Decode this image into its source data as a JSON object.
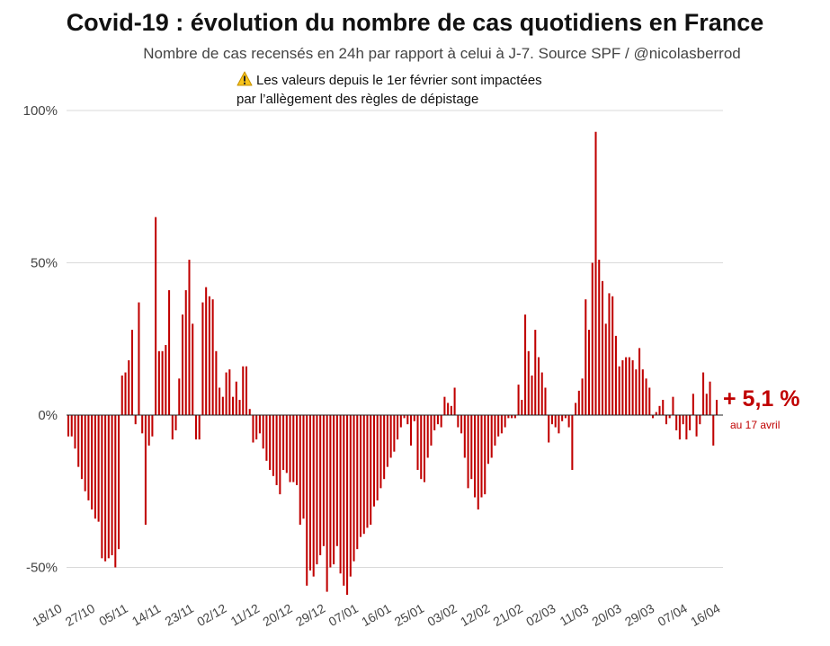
{
  "title": "Covid-19 : évolution du nombre de cas quotidiens en France",
  "subtitle": "Nombre de cas recensés en 24h par rapport à celui à J-7. Source SPF / @nicolasberrod",
  "note_line1": "Les valeurs depuis le 1er février sont impactées",
  "note_line2": "par l’allègement des règles de dépistage",
  "warning_icon": "warning-icon",
  "last_value": "+ 5,1 %",
  "last_date": "au 17 avril",
  "colors": {
    "bar": "#c00000",
    "grid": "#d9d9d9",
    "axis": "#222222",
    "text": "#444444"
  },
  "chart_data": {
    "type": "bar",
    "title": "Covid-19 : évolution du nombre de cas quotidiens en France",
    "xlabel": "",
    "ylabel": "",
    "ylim": [
      -60,
      100
    ],
    "yticks": [
      100,
      50,
      0,
      -50
    ],
    "ytick_labels": [
      "100%",
      "50%",
      "0%",
      "-50%"
    ],
    "x_tick_labels": [
      "18/10",
      "27/10",
      "05/11",
      "14/11",
      "23/11",
      "02/12",
      "11/12",
      "20/12",
      "29/12",
      "07/01",
      "16/01",
      "25/01",
      "03/02",
      "12/02",
      "21/02",
      "02/03",
      "11/03",
      "20/03",
      "29/03",
      "07/04",
      "16/04"
    ],
    "start_date": "18/10",
    "end_date": "17/04",
    "grid": true,
    "values": [
      -7,
      -7,
      -11,
      -17,
      -21,
      -25,
      -28,
      -31,
      -34,
      -35,
      -47,
      -48,
      -47,
      -46,
      -50,
      -44,
      13,
      14,
      18,
      28,
      -3,
      37,
      -6,
      -36,
      -10,
      -7,
      65,
      21,
      21,
      23,
      41,
      -8,
      -5,
      12,
      33,
      41,
      51,
      30,
      -8,
      -8,
      37,
      42,
      39,
      38,
      21,
      9,
      6,
      14,
      15,
      6,
      11,
      5,
      16,
      16,
      2,
      -9,
      -8,
      -6,
      -11,
      -15,
      -18,
      -20,
      -23,
      -26,
      -18,
      -19,
      -22,
      -22,
      -23,
      -36,
      -34,
      -56,
      -51,
      -53,
      -49,
      -46,
      -43,
      -58,
      -50,
      -49,
      -43,
      -52,
      -56,
      -59,
      -53,
      -48,
      -44,
      -40,
      -39,
      -37,
      -36,
      -30,
      -28,
      -24,
      -21,
      -17,
      -14,
      -12,
      -8,
      -4,
      -1,
      -3,
      -10,
      -2,
      -18,
      -21,
      -22,
      -14,
      -10,
      -5,
      -3,
      -4,
      6,
      4,
      3,
      9,
      -4,
      -6,
      -14,
      -24,
      -21,
      -27,
      -31,
      -27,
      -26,
      -16,
      -14,
      -10,
      -7,
      -6,
      -4,
      -1,
      -1,
      -1,
      10,
      5,
      33,
      21,
      13,
      28,
      19,
      14,
      9,
      -9,
      -3,
      -4,
      -6,
      -2,
      -1,
      -4,
      -18,
      4,
      8,
      12,
      38,
      28,
      50,
      93,
      51,
      44,
      30,
      40,
      39,
      26,
      16,
      18,
      19,
      19,
      18,
      15,
      22,
      15,
      12,
      9,
      -1,
      1,
      3,
      5,
      -3,
      -1,
      6,
      -5,
      -8,
      -3,
      -8,
      -5,
      7,
      -7,
      -3,
      14,
      7,
      11,
      -10,
      5
    ]
  }
}
